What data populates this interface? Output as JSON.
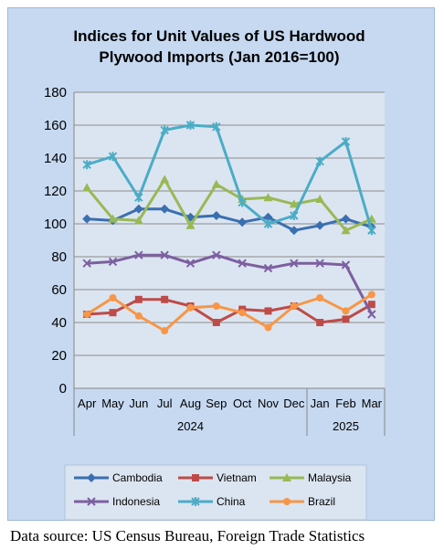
{
  "chart_data": {
    "type": "line",
    "title_lines": [
      "Indices for Unit Values of US Hardwood",
      "Plywood Imports (Jan 2016=100)"
    ],
    "xlabel": "",
    "ylabel": "",
    "ylim": [
      0,
      180
    ],
    "yticks": [
      0,
      20,
      40,
      60,
      80,
      100,
      120,
      140,
      160,
      180
    ],
    "categories": [
      "Apr",
      "May",
      "Jun",
      "Jul",
      "Aug",
      "Sep",
      "Oct",
      "Nov",
      "Dec",
      "Jan",
      "Feb",
      "Mar"
    ],
    "year_groups": [
      {
        "label": "2024",
        "start": 0,
        "end": 8
      },
      {
        "label": "2025",
        "start": 9,
        "end": 11
      }
    ],
    "grid": true,
    "legend_position": "bottom",
    "series": [
      {
        "name": "Cambodia",
        "color": "#3a6fb0",
        "marker": "diamond",
        "values": [
          103,
          102,
          109,
          109,
          104,
          105,
          101,
          104,
          96,
          99,
          103,
          98
        ]
      },
      {
        "name": "Vietnam",
        "color": "#be4b48",
        "marker": "square",
        "values": [
          45,
          46,
          54,
          54,
          50,
          40,
          48,
          47,
          50,
          40,
          42,
          51
        ]
      },
      {
        "name": "Malaysia",
        "color": "#98b954",
        "marker": "triangle",
        "values": [
          122,
          103,
          102,
          127,
          99,
          124,
          115,
          116,
          112,
          115,
          96,
          103
        ]
      },
      {
        "name": "Indonesia",
        "color": "#7d5fa0",
        "marker": "x",
        "values": [
          76,
          77,
          81,
          81,
          76,
          81,
          76,
          73,
          76,
          76,
          75,
          45
        ]
      },
      {
        "name": "China",
        "color": "#4bacc6",
        "marker": "star",
        "values": [
          136,
          141,
          116,
          157,
          160,
          159,
          113,
          100,
          105,
          138,
          150,
          96
        ]
      },
      {
        "name": "Brazil",
        "color": "#f79646",
        "marker": "circle",
        "values": [
          45,
          55,
          44,
          35,
          49,
          50,
          46,
          37,
          50,
          55,
          47,
          57
        ]
      }
    ]
  },
  "footer": {
    "source": "Data source: US Census Bureau, Foreign Trade Statistics"
  }
}
